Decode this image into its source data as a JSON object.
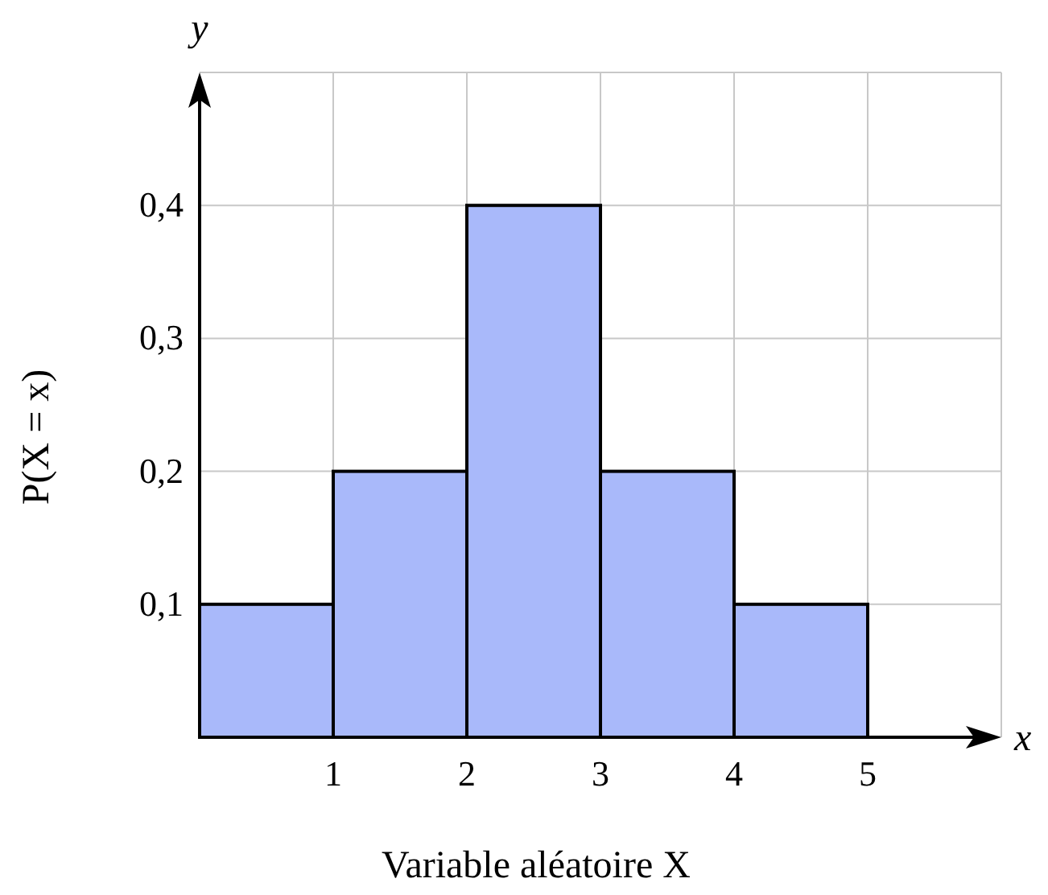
{
  "chart_data": {
    "type": "histogram",
    "xlabel": "Variable aléatoire X",
    "ylabel": "P(X = x)",
    "bins": [
      0,
      1,
      2,
      3,
      4,
      5
    ],
    "values": [
      0.1,
      0.2,
      0.4,
      0.2,
      0.1
    ],
    "color": "#a9b9fa",
    "xlim": [
      0,
      6
    ],
    "ylim": [
      0,
      0.5
    ],
    "xticks": [
      1,
      2,
      3,
      4,
      5,
      {
        "value": 6,
        "label": null
      }
    ],
    "yticks": [
      {
        "value": 0.1,
        "label": "0,1"
      },
      {
        "value": 0.2,
        "label": "0,2"
      },
      {
        "value": 0.3,
        "label": "0,3"
      },
      {
        "value": 0.4,
        "label": "0,4"
      },
      {
        "value": 0.5,
        "label": null
      }
    ],
    "grid": true,
    "annotations": [
      "x",
      "y"
    ]
  }
}
